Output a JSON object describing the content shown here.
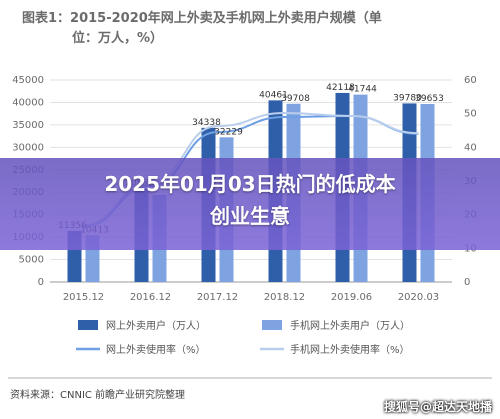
{
  "chart_data": {
    "type": "bar",
    "title": "图表1：2015-2020年网上外卖及手机网上外卖用户规模（单位：万人，%）",
    "title_lines": [
      "图表1：2015-2020年网上外卖及手机网上外卖用户规模（单",
      "位：万人，%）"
    ],
    "categories": [
      "2015.12",
      "2016.12",
      "2017.12",
      "2018.12",
      "2019.06",
      "2020.03"
    ],
    "series": [
      {
        "name": "网上外卖用户（万人）",
        "type": "bar",
        "axis": "left",
        "color": "#2f5fa8",
        "values": [
          11356,
          20856,
          34338,
          40461,
          42118,
          39780
        ],
        "labels": [
          "11356",
          "20856",
          "34338",
          "40461",
          "42118",
          "39780"
        ]
      },
      {
        "name": "手机网上外卖用户（万人）",
        "type": "bar",
        "axis": "left",
        "color": "#7ea3e0",
        "values": [
          10413,
          19387,
          32229,
          39708,
          41744,
          39653
        ],
        "labels": [
          "10413",
          "",
          "32229",
          "39708",
          "41744",
          "39653"
        ]
      },
      {
        "name": "网上外卖使用率（%）",
        "type": "line",
        "axis": "right",
        "color": "#6fa0e4",
        "values": [
          16.5,
          28.5,
          44.5,
          49,
          49.3,
          44
        ]
      },
      {
        "name": "手机网上外卖使用率（%）",
        "type": "line",
        "axis": "right",
        "color": "#b9cdec",
        "values": [
          16.8,
          29.6,
          46.3,
          50.2,
          49.3,
          44.2
        ]
      }
    ],
    "y_left": {
      "min": 0,
      "max": 45000,
      "ticks": [
        "0",
        "5000",
        "10000",
        "15000",
        "20000",
        "25000",
        "30000",
        "35000",
        "40000",
        "45000"
      ]
    },
    "y_right": {
      "min": 0,
      "max": 60,
      "ticks": [
        "0",
        "10",
        "20",
        "30",
        "40",
        "50",
        "60"
      ]
    },
    "grid": true,
    "legend_position": "bottom",
    "source": "资料来源：CNNIC 前瞻产业研究院整理"
  },
  "overlay": {
    "line1": "2025年01月03日热门的低成本",
    "line2": "创业生意"
  },
  "watermark": "搜狐号@超达天地播",
  "colors": {
    "overlay": "#6b56c4",
    "bar_dark": "#2f5fa8",
    "bar_light": "#7ea3e0"
  }
}
